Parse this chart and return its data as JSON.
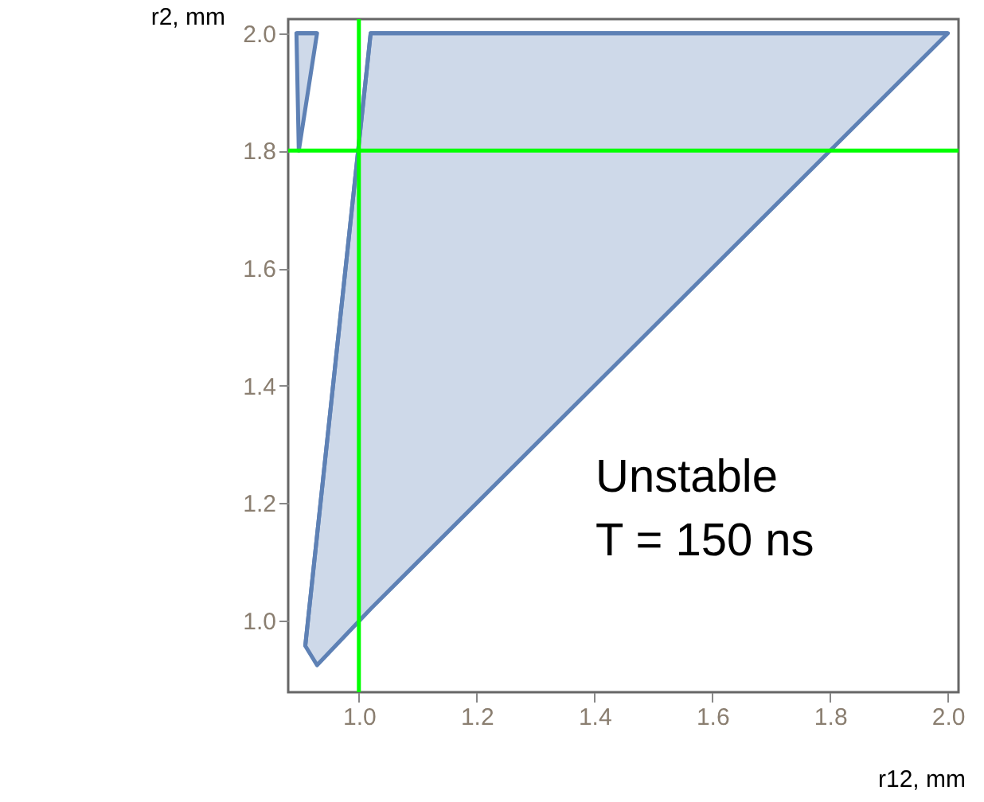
{
  "chart_data": {
    "type": "line",
    "marker": "none",
    "xlabel": "r12, mm",
    "ylabel": "r2, mm",
    "xlim": [
      0.88,
      2.018
    ],
    "ylim": [
      0.878,
      2.024
    ],
    "xticks": [
      {
        "value": 1,
        "label": "1.0"
      },
      1.2,
      1.4,
      1.6,
      1.8,
      {
        "value": 2,
        "label": "2.0"
      }
    ],
    "yticks": [
      {
        "value": 1,
        "label": "1.0"
      },
      1.2,
      1.4,
      1.6,
      1.8,
      {
        "value": 2,
        "label": "2.0"
      }
    ],
    "series": [
      {
        "color": "#5e81b5",
        "x": [
          0.909,
          0.929,
          1.02,
          2.0
        ],
        "values": [
          0.957,
          1.145,
          2.0,
          2.0
        ],
        "lower": [
          0.957,
          0.924,
          1.02,
          2.0
        ],
        "upper": [
          0.957,
          1.145,
          2.0,
          2.0
        ]
      },
      {
        "color": "#5e81b5",
        "x": [
          0.894,
          0.898,
          0.929
        ],
        "values": [
          2.0,
          2.0,
          2.0
        ],
        "lower": [
          2.0,
          1.8,
          2.0
        ],
        "upper": [
          2.0,
          2.0,
          2.0
        ]
      }
    ],
    "ref_lines": [
      {
        "axis": "x",
        "value": 1.0,
        "color": "#00ff00"
      },
      {
        "axis": "y",
        "value": 1.8,
        "color": "#00ff00"
      }
    ],
    "annotations": [
      "Unstable",
      "T = 150 ns"
    ]
  }
}
